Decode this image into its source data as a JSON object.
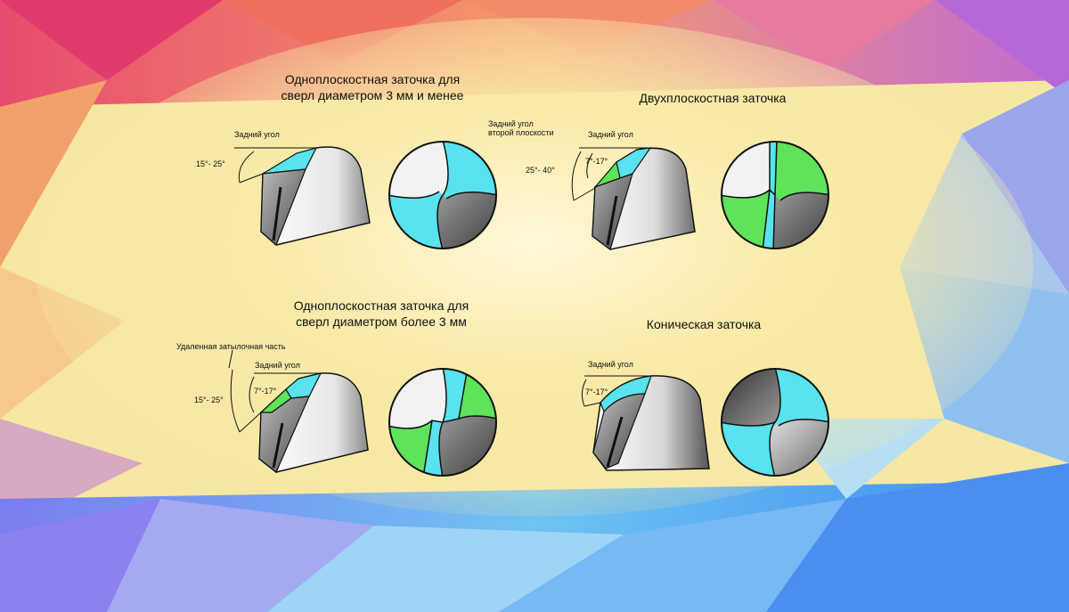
{
  "colors": {
    "cyan": "#58e3ee",
    "green": "#5ee35a",
    "steel_dark": "#6e6e6e",
    "steel_light": "#f2f2f2",
    "outline": "#111111"
  },
  "panels": [
    {
      "id": "single-plane-small",
      "title_lines": [
        "Одноплоскостная заточка для",
        "сверл диаметром 3 мм и менее"
      ],
      "labels": {
        "back_angle": "Задний угол",
        "angle_range": "15°- 25°"
      }
    },
    {
      "id": "double-plane",
      "title_lines": [
        "Двухплоскостная заточка"
      ],
      "labels": {
        "second_plane_lines": [
          "Задний угол",
          "второй плоскости"
        ],
        "back_angle": "Задний угол",
        "angle_range_outer": "25°- 40°",
        "angle_range_inner": "7°-17°"
      }
    },
    {
      "id": "single-plane-large",
      "title_lines": [
        "Одноплоскостная заточка для",
        "сверл диаметром более 3 мм"
      ],
      "labels": {
        "removed_part": "Удаленная затылочная часть",
        "back_angle": "Задний угол",
        "angle_range_outer": "15°- 25°",
        "angle_range_inner": "7°-17°"
      }
    },
    {
      "id": "conical",
      "title_lines": [
        "Коническая заточка"
      ],
      "labels": {
        "back_angle": "Задний угол",
        "angle_range": "7°-17°"
      }
    }
  ]
}
